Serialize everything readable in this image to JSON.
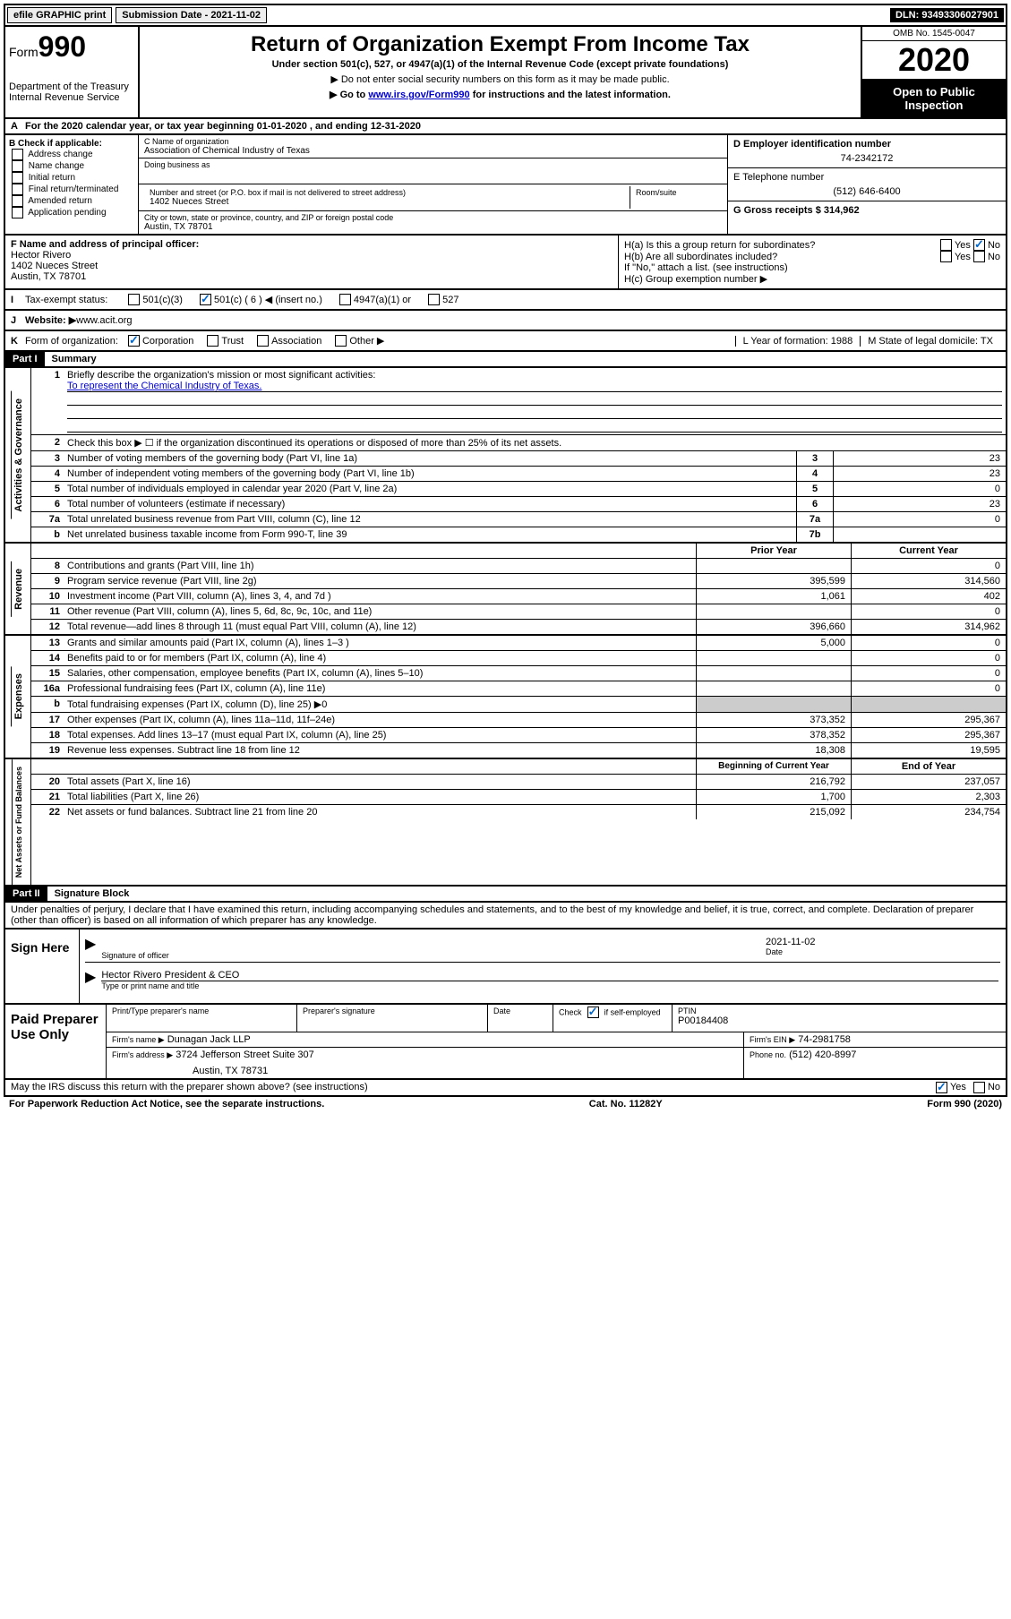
{
  "topbar": {
    "efile": "efile GRAPHIC print",
    "submission_label": "Submission Date - 2021-11-02",
    "dln": "DLN: 93493306027901"
  },
  "header": {
    "form_label": "Form",
    "form_number": "990",
    "dept1": "Department of the Treasury",
    "dept2": "Internal Revenue Service",
    "title": "Return of Organization Exempt From Income Tax",
    "subtitle": "Under section 501(c), 527, or 4947(a)(1) of the Internal Revenue Code (except private foundations)",
    "note1": "▶ Do not enter social security numbers on this form as it may be made public.",
    "note2_pre": "▶ Go to ",
    "note2_link": "www.irs.gov/Form990",
    "note2_post": " for instructions and the latest information.",
    "omb": "OMB No. 1545-0047",
    "year": "2020",
    "open": "Open to Public Inspection"
  },
  "row_a": {
    "label": "A",
    "text": "For the 2020 calendar year, or tax year beginning 01-01-2020    , and ending 12-31-2020"
  },
  "section_b": {
    "label": "B Check if applicable:",
    "items": [
      "Address change",
      "Name change",
      "Initial return",
      "Final return/terminated",
      "Amended return",
      "Application pending"
    ]
  },
  "section_c": {
    "name_label": "C Name of organization",
    "name": "Association of Chemical Industry of Texas",
    "dba_label": "Doing business as",
    "street_label": "Number and street (or P.O. box if mail is not delivered to street address)",
    "room_label": "Room/suite",
    "street": "1402 Nueces Street",
    "city_label": "City or town, state or province, country, and ZIP or foreign postal code",
    "city": "Austin, TX  78701"
  },
  "section_d": {
    "ein_label": "D Employer identification number",
    "ein": "74-2342172",
    "phone_label": "E Telephone number",
    "phone": "(512) 646-6400",
    "gross_label": "G Gross receipts $ 314,962"
  },
  "section_f": {
    "label": "F  Name and address of principal officer:",
    "name": "Hector Rivero",
    "street": "1402 Nueces Street",
    "city": "Austin, TX  78701"
  },
  "section_h": {
    "ha": "H(a)  Is this a group return for subordinates?",
    "hb": "H(b)  Are all subordinates included?",
    "hb_note": "If \"No,\" attach a list. (see instructions)",
    "hc": "H(c)  Group exemption number ▶",
    "yes": "Yes",
    "no": "No"
  },
  "row_i": {
    "label": "I",
    "text": "Tax-exempt status:",
    "opt1": "501(c)(3)",
    "opt2": "501(c) ( 6 ) ◀ (insert no.)",
    "opt3": "4947(a)(1) or",
    "opt4": "527"
  },
  "row_j": {
    "label": "J",
    "text": "Website: ▶",
    "value": "  www.acit.org"
  },
  "row_k": {
    "label": "K",
    "text": "Form of organization:",
    "opts": [
      "Corporation",
      "Trust",
      "Association",
      "Other ▶"
    ],
    "l_label": "L Year of formation: 1988",
    "m_label": "M State of legal domicile: TX"
  },
  "part1": {
    "header": "Part I",
    "title": "Summary",
    "q1_label": "1",
    "q1_text": "Briefly describe the organization's mission or most significant activities:",
    "q1_value": "To represent the Chemical Industry of Texas.",
    "q2_label": "2",
    "q2_text": "Check this box ▶ ☐  if the organization discontinued its operations or disposed of more than 25% of its net assets.",
    "vtext1": "Activities & Governance",
    "rows_ag": [
      {
        "num": "3",
        "desc": "Number of voting members of the governing body (Part VI, line 1a)",
        "key": "3",
        "val": "23"
      },
      {
        "num": "4",
        "desc": "Number of independent voting members of the governing body (Part VI, line 1b)",
        "key": "4",
        "val": "23"
      },
      {
        "num": "5",
        "desc": "Total number of individuals employed in calendar year 2020 (Part V, line 2a)",
        "key": "5",
        "val": "0"
      },
      {
        "num": "6",
        "desc": "Total number of volunteers (estimate if necessary)",
        "key": "6",
        "val": "23"
      },
      {
        "num": "7a",
        "desc": "Total unrelated business revenue from Part VIII, column (C), line 12",
        "key": "7a",
        "val": "0"
      },
      {
        "num": "b",
        "desc": "Net unrelated business taxable income from Form 990-T, line 39",
        "key": "7b",
        "val": ""
      }
    ],
    "vtext2": "Revenue",
    "col_prior": "Prior Year",
    "col_current": "Current Year",
    "rows_rev": [
      {
        "num": "8",
        "desc": "Contributions and grants (Part VIII, line 1h)",
        "prior": "",
        "cur": "0"
      },
      {
        "num": "9",
        "desc": "Program service revenue (Part VIII, line 2g)",
        "prior": "395,599",
        "cur": "314,560"
      },
      {
        "num": "10",
        "desc": "Investment income (Part VIII, column (A), lines 3, 4, and 7d )",
        "prior": "1,061",
        "cur": "402"
      },
      {
        "num": "11",
        "desc": "Other revenue (Part VIII, column (A), lines 5, 6d, 8c, 9c, 10c, and 11e)",
        "prior": "",
        "cur": "0"
      },
      {
        "num": "12",
        "desc": "Total revenue—add lines 8 through 11 (must equal Part VIII, column (A), line 12)",
        "prior": "396,660",
        "cur": "314,962"
      }
    ],
    "vtext3": "Expenses",
    "rows_exp": [
      {
        "num": "13",
        "desc": "Grants and similar amounts paid (Part IX, column (A), lines 1–3 )",
        "prior": "5,000",
        "cur": "0"
      },
      {
        "num": "14",
        "desc": "Benefits paid to or for members (Part IX, column (A), line 4)",
        "prior": "",
        "cur": "0"
      },
      {
        "num": "15",
        "desc": "Salaries, other compensation, employee benefits (Part IX, column (A), lines 5–10)",
        "prior": "",
        "cur": "0"
      },
      {
        "num": "16a",
        "desc": "Professional fundraising fees (Part IX, column (A), line 11e)",
        "prior": "",
        "cur": "0"
      },
      {
        "num": "b",
        "desc": "Total fundraising expenses (Part IX, column (D), line 25) ▶0",
        "prior": "SHADED",
        "cur": "SHADED"
      },
      {
        "num": "17",
        "desc": "Other expenses (Part IX, column (A), lines 11a–11d, 11f–24e)",
        "prior": "373,352",
        "cur": "295,367"
      },
      {
        "num": "18",
        "desc": "Total expenses. Add lines 13–17 (must equal Part IX, column (A), line 25)",
        "prior": "378,352",
        "cur": "295,367"
      },
      {
        "num": "19",
        "desc": "Revenue less expenses. Subtract line 18 from line 12",
        "prior": "18,308",
        "cur": "19,595"
      }
    ],
    "vtext4": "Net Assets or Fund Balances",
    "col_begin": "Beginning of Current Year",
    "col_end": "End of Year",
    "rows_net": [
      {
        "num": "20",
        "desc": "Total assets (Part X, line 16)",
        "prior": "216,792",
        "cur": "237,057"
      },
      {
        "num": "21",
        "desc": "Total liabilities (Part X, line 26)",
        "prior": "1,700",
        "cur": "2,303"
      },
      {
        "num": "22",
        "desc": "Net assets or fund balances. Subtract line 21 from line 20",
        "prior": "215,092",
        "cur": "234,754"
      }
    ]
  },
  "part2": {
    "header": "Part II",
    "title": "Signature Block",
    "declaration": "Under penalties of perjury, I declare that I have examined this return, including accompanying schedules and statements, and to the best of my knowledge and belief, it is true, correct, and complete. Declaration of preparer (other than officer) is based on all information of which preparer has any knowledge."
  },
  "sign": {
    "label": "Sign Here",
    "sig_label": "Signature of officer",
    "date_label": "Date",
    "date": "2021-11-02",
    "name": "Hector Rivero  President & CEO",
    "name_label": "Type or print name and title"
  },
  "preparer": {
    "label": "Paid Preparer Use Only",
    "print_label": "Print/Type preparer's name",
    "sig_label": "Preparer's signature",
    "date_label": "Date",
    "check_label": "Check",
    "check_text": "if self-employed",
    "ptin_label": "PTIN",
    "ptin": "P00184408",
    "firm_name_label": "Firm's name   ▶",
    "firm_name": "Dunagan Jack LLP",
    "firm_ein_label": "Firm's EIN ▶",
    "firm_ein": "74-2981758",
    "firm_addr_label": "Firm's address ▶",
    "firm_addr1": "3724 Jefferson Street Suite 307",
    "firm_addr2": "Austin, TX  78731",
    "phone_label": "Phone no.",
    "phone": "(512) 420-8997"
  },
  "footer": {
    "discuss": "May the IRS discuss this return with the preparer shown above? (see instructions)",
    "yes": "Yes",
    "no": "No",
    "paperwork": "For Paperwork Reduction Act Notice, see the separate instructions.",
    "cat": "Cat. No. 11282Y",
    "form": "Form 990 (2020)"
  }
}
